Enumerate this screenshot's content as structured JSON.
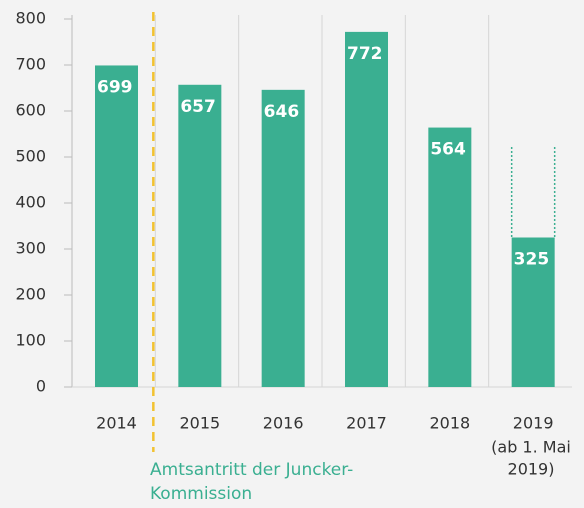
{
  "chart_data": {
    "type": "bar",
    "categories": [
      "2014",
      "2015",
      "2016",
      "2017",
      "2018",
      "2019"
    ],
    "category_note": [
      "(ab 1. Mai",
      "2019)"
    ],
    "values": [
      699,
      657,
      646,
      772,
      564,
      325
    ],
    "color": "#3aaf91",
    "ylim": [
      0,
      800
    ],
    "yticks": [
      0,
      100,
      200,
      300,
      400,
      500,
      600,
      700,
      800
    ],
    "annotation": [
      "Amtsantritt der Juncker-",
      "Kommission"
    ],
    "annotation_color": "#f2c230"
  }
}
